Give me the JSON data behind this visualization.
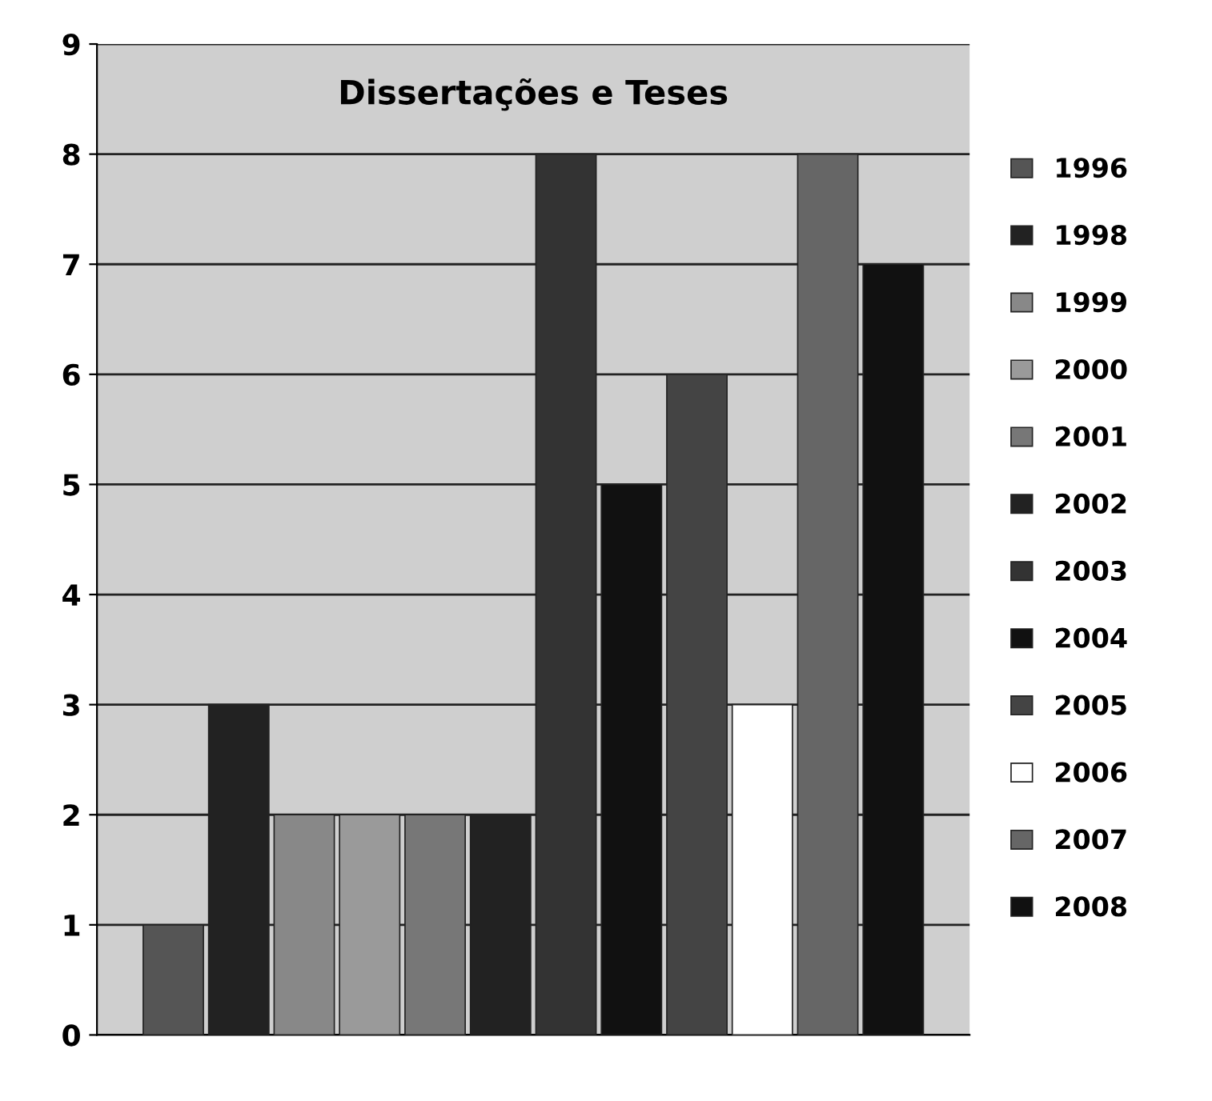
{
  "chart_data": {
    "type": "bar",
    "title": "Dissertações e Teses",
    "categories": [
      null
    ],
    "series": [
      {
        "name": "1996",
        "color": "#555555",
        "values": [
          1
        ]
      },
      {
        "name": "1998",
        "color": "#222222",
        "values": [
          3
        ]
      },
      {
        "name": "1999",
        "color": "#888888",
        "values": [
          2
        ]
      },
      {
        "name": "2000",
        "color": "#9a9a9a",
        "values": [
          2
        ]
      },
      {
        "name": "2001",
        "color": "#777777",
        "values": [
          2
        ]
      },
      {
        "name": "2002",
        "color": "#222222",
        "values": [
          2
        ]
      },
      {
        "name": "2003",
        "color": "#333333",
        "values": [
          8
        ]
      },
      {
        "name": "2004",
        "color": "#111111",
        "values": [
          5
        ]
      },
      {
        "name": "2005",
        "color": "#444444",
        "values": [
          6
        ]
      },
      {
        "name": "2006",
        "color": "#ffffff",
        "values": [
          3
        ]
      },
      {
        "name": "2007",
        "color": "#666666",
        "values": [
          8
        ]
      },
      {
        "name": "2008",
        "color": "#111111",
        "values": [
          7
        ]
      }
    ],
    "ylim": [
      0,
      9
    ],
    "yticks": [
      0,
      1,
      2,
      3,
      4,
      5,
      6,
      7,
      8,
      9
    ],
    "grid": "y",
    "legend": "right"
  }
}
